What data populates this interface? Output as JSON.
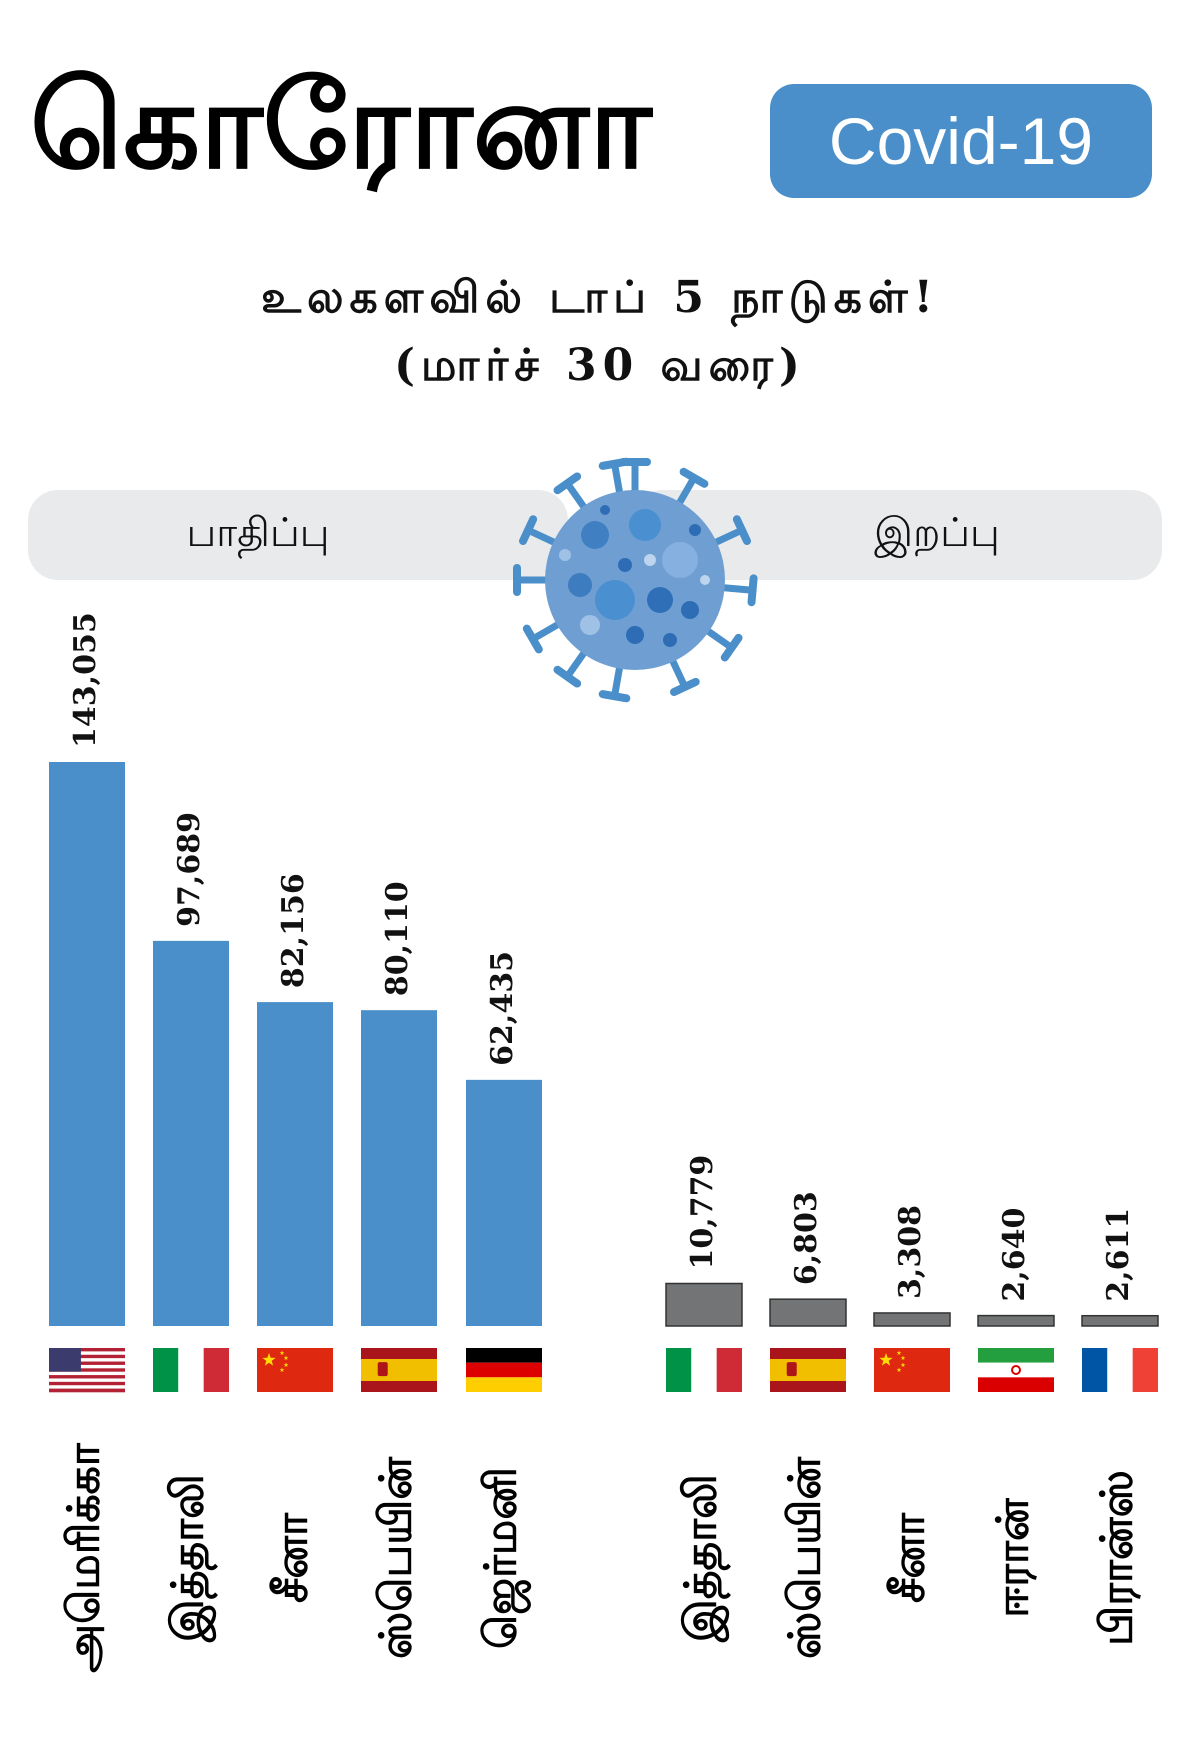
{
  "header": {
    "title": "கொரோனா",
    "badge": "Covid-19",
    "badge_color": "#4a8fc9",
    "subtitle_line1": "உலகளவில் டாப் 5 நாடுகள்!",
    "subtitle_line2": "(மார்ச் 30 வரை)"
  },
  "sections": {
    "left_label": "பாதிப்பு",
    "right_label": "இறப்பு"
  },
  "icons": {
    "virus": "coronavirus-icon",
    "virus_color": "#4a8fc9"
  },
  "chart_data": [
    {
      "type": "bar",
      "label": "பாதிப்பு",
      "color": "#4a8fc9",
      "categories": [
        "அமெரிக்கா",
        "இத்தாலி",
        "சீனா",
        "ஸ்பெயின்",
        "ஜெர்மனி"
      ],
      "values": [
        143055,
        97689,
        82156,
        80110,
        62435
      ],
      "value_labels": [
        "143,055",
        "97,689",
        "82,156",
        "80,110",
        "62,435"
      ],
      "flags": [
        "usa",
        "italy",
        "china",
        "spain",
        "germany"
      ]
    },
    {
      "type": "bar",
      "label": "இறப்பு",
      "color": "#737475",
      "categories": [
        "இத்தாலி",
        "ஸ்பெயின்",
        "சீனா",
        "ஈரான்",
        "பிரான்ஸ்"
      ],
      "values": [
        10779,
        6803,
        3308,
        2640,
        2611
      ],
      "value_labels": [
        "10,779",
        "6,803",
        "3,308",
        "2,640",
        "2,611"
      ],
      "flags": [
        "italy",
        "spain",
        "china",
        "iran",
        "france"
      ]
    }
  ]
}
